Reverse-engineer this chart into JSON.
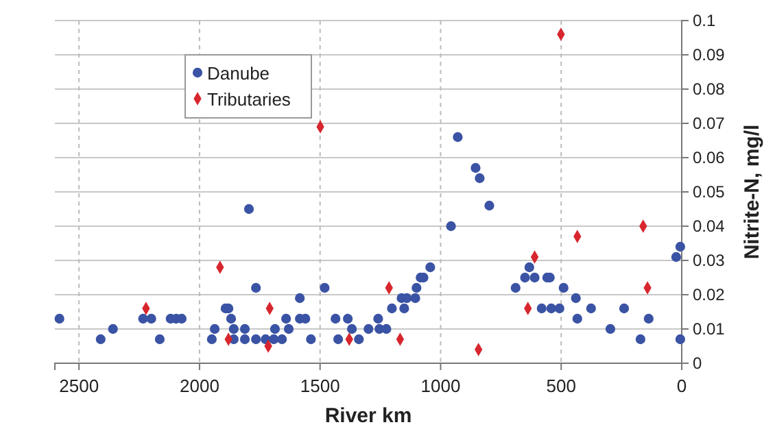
{
  "chart_data": {
    "type": "scatter",
    "xlabel": "River km",
    "ylabel": "Nitrite-N, mg/l",
    "xlim": [
      2600,
      0
    ],
    "xticks": [
      2500,
      2000,
      1500,
      1000,
      500,
      0
    ],
    "ylim": [
      0,
      0.1
    ],
    "yticks": [
      0,
      0.01,
      0.02,
      0.03,
      0.04,
      0.05,
      0.06,
      0.07,
      0.08,
      0.09,
      0.1
    ],
    "grid": true,
    "legend": "top left",
    "series": [
      {
        "name": "Danube",
        "color": "#3a53a4",
        "marker": "circle",
        "x": [
          2581,
          2410,
          2359,
          2234,
          2200,
          2165,
          2120,
          2097,
          2074,
          1949,
          1937,
          1892,
          1880,
          1869,
          1858,
          1858,
          1812,
          1812,
          1795,
          1766,
          1766,
          1726,
          1692,
          1687,
          1658,
          1641,
          1630,
          1584,
          1584,
          1561,
          1538,
          1481,
          1436,
          1425,
          1385,
          1368,
          1339,
          1299,
          1259,
          1254,
          1225,
          1202,
          1151,
          1162,
          1140,
          1105,
          1100,
          1083,
          1071,
          1043,
          957,
          929,
          855,
          838,
          798,
          689,
          650,
          632,
          610,
          581,
          558,
          547,
          541,
          507,
          490,
          439,
          433,
          376,
          296,
          239,
          171,
          137,
          23,
          6,
          6
        ],
        "values": [
          0.013,
          0.007,
          0.01,
          0.013,
          0.013,
          0.007,
          0.013,
          0.013,
          0.013,
          0.007,
          0.01,
          0.016,
          0.016,
          0.013,
          0.01,
          0.007,
          0.01,
          0.007,
          0.045,
          0.007,
          0.022,
          0.007,
          0.007,
          0.01,
          0.007,
          0.013,
          0.01,
          0.019,
          0.013,
          0.013,
          0.007,
          0.022,
          0.013,
          0.007,
          0.013,
          0.01,
          0.007,
          0.01,
          0.013,
          0.01,
          0.01,
          0.016,
          0.016,
          0.019,
          0.019,
          0.019,
          0.022,
          0.025,
          0.025,
          0.028,
          0.04,
          0.066,
          0.057,
          0.054,
          0.046,
          0.022,
          0.025,
          0.028,
          0.025,
          0.016,
          0.025,
          0.025,
          0.016,
          0.016,
          0.022,
          0.019,
          0.013,
          0.016,
          0.01,
          0.016,
          0.007,
          0.013,
          0.031,
          0.034,
          0.007
        ]
      },
      {
        "name": "Tributaries",
        "color": "#d7262e",
        "marker": "diamond",
        "x": [
          2222,
          1915,
          1880,
          1709,
          1715,
          1499,
          1379,
          1214,
          1168,
          843,
          638,
          610,
          501,
          433,
          160,
          142
        ],
        "values": [
          0.016,
          0.028,
          0.007,
          0.016,
          0.005,
          0.069,
          0.007,
          0.022,
          0.007,
          0.004,
          0.016,
          0.031,
          0.096,
          0.037,
          0.04,
          0.022
        ]
      }
    ]
  }
}
